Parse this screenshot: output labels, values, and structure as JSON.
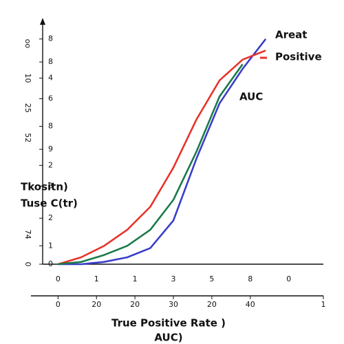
{
  "chart_data": {
    "type": "line",
    "ylabel": [
      "Tkositn)",
      "Tuse C(tr)"
    ],
    "xlabel": [
      "True Positive Rate )",
      "AUC)"
    ],
    "annotation": "AUC",
    "x": [
      0,
      6,
      12,
      18,
      24,
      30,
      36,
      42,
      48,
      54
    ],
    "series": [
      {
        "name": "Areat",
        "color": "#3a3ec8",
        "values": [
          0,
          0,
          1,
          3,
          7,
          19,
          46,
          70,
          85,
          98
        ]
      },
      {
        "name": "Positive",
        "color": "#e8322a",
        "values": [
          0,
          3,
          8,
          15,
          25,
          42,
          63,
          80,
          89,
          93
        ]
      },
      {
        "color": "#1a7a4a",
        "values": [
          0,
          1,
          4,
          8,
          15,
          28,
          49,
          73,
          87,
          null
        ]
      }
    ],
    "xlim": [
      -4,
      69
    ],
    "xticks": [
      {
        "value": 0,
        "label": "0"
      },
      {
        "value": 10,
        "label": "1"
      },
      {
        "value": 20,
        "label": "1"
      },
      {
        "value": 30,
        "label": "3"
      },
      {
        "value": 40,
        "label": "5"
      },
      {
        "value": 50,
        "label": "8"
      },
      {
        "value": 60,
        "label": "0"
      }
    ],
    "x2ticks": [
      0,
      {
        "value": 10,
        "label": "20"
      },
      20,
      30,
      {
        "value": 40,
        "label": "20"
      },
      {
        "value": 50,
        "label": "40"
      },
      {
        "value": 69,
        "label": "1"
      }
    ],
    "ylim": [
      0,
      100
    ],
    "yticks": [
      0,
      {
        "value": 8,
        "label": "1"
      },
      {
        "value": 20,
        "label": "2"
      },
      {
        "value": 34,
        "label": "3"
      },
      {
        "value": 43,
        "label": "2"
      },
      {
        "value": 50,
        "label": "9"
      },
      {
        "value": 60,
        "label": "8"
      },
      {
        "value": 72,
        "label": "6"
      },
      {
        "value": 81,
        "label": "4"
      },
      {
        "value": 88,
        "label": "8"
      },
      {
        "value": 98,
        "label": "8"
      }
    ],
    "y2lim": [
      0,
      100
    ],
    "y2ticks": [
      0,
      {
        "value": 13,
        "label": "74"
      },
      {
        "value": 55,
        "label": "52"
      },
      {
        "value": 68,
        "label": "25"
      },
      {
        "value": 81,
        "label": "10"
      },
      {
        "value": 96,
        "label": "oo"
      }
    ]
  }
}
